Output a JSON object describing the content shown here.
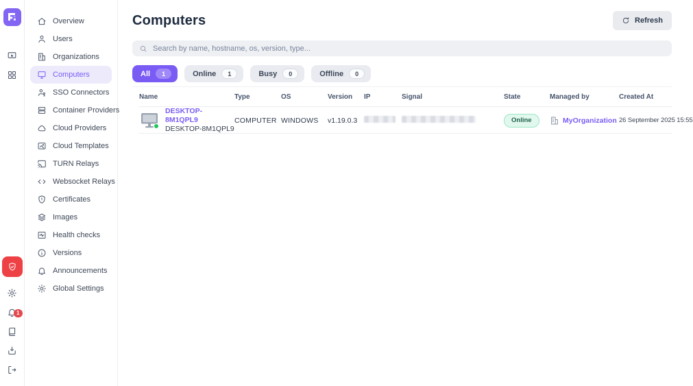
{
  "brand": {
    "logo_color": "#8265f3"
  },
  "rail": {
    "top_icons": [
      {
        "icon": "screen-share"
      },
      {
        "icon": "apps-grid"
      }
    ],
    "alert_button": {
      "icon": "shield-check",
      "color": "#ee4145"
    },
    "bottom_icons": [
      {
        "icon": "gear"
      },
      {
        "icon": "bell",
        "badge": "1"
      },
      {
        "icon": "book"
      },
      {
        "icon": "import-box"
      },
      {
        "icon": "logout"
      }
    ]
  },
  "sidebar": {
    "items": [
      {
        "label": "Overview",
        "icon": "home",
        "active": false
      },
      {
        "label": "Users",
        "icon": "user",
        "active": false
      },
      {
        "label": "Organizations",
        "icon": "building",
        "active": false
      },
      {
        "label": "Computers",
        "icon": "computer",
        "active": true
      },
      {
        "label": "SSO Connectors",
        "icon": "sso",
        "active": false
      },
      {
        "label": "Container Providers",
        "icon": "container",
        "active": false
      },
      {
        "label": "Cloud Providers",
        "icon": "cloud",
        "active": false
      },
      {
        "label": "Cloud Templates",
        "icon": "template",
        "active": false
      },
      {
        "label": "TURN Relays",
        "icon": "cast",
        "active": false
      },
      {
        "label": "Websocket Relays",
        "icon": "websocket",
        "active": false
      },
      {
        "label": "Certificates",
        "icon": "certificate",
        "active": false
      },
      {
        "label": "Images",
        "icon": "layers",
        "active": false
      },
      {
        "label": "Health checks",
        "icon": "health",
        "active": false
      },
      {
        "label": "Versions",
        "icon": "info",
        "active": false
      },
      {
        "label": "Announcements",
        "icon": "bell",
        "active": false
      },
      {
        "label": "Global Settings",
        "icon": "gear",
        "active": false
      }
    ]
  },
  "header": {
    "title": "Computers",
    "refresh_label": "Refresh"
  },
  "search": {
    "placeholder": "Search by name, hostname, os, version, type..."
  },
  "filters": [
    {
      "label": "All",
      "count": "1",
      "active": true
    },
    {
      "label": "Online",
      "count": "1",
      "active": false
    },
    {
      "label": "Busy",
      "count": "0",
      "active": false
    },
    {
      "label": "Offline",
      "count": "0",
      "active": false
    }
  ],
  "table": {
    "columns": [
      "Name",
      "Type",
      "OS",
      "Version",
      "IP",
      "Signal",
      "State",
      "Managed by",
      "Created At"
    ],
    "rows": [
      {
        "name_primary": "DESKTOP-8M1QPL9",
        "name_secondary": "DESKTOP-8M1QPL9",
        "type": "COMPUTER",
        "os": "WINDOWS",
        "version": "v1.19.0.3",
        "ip_redacted": true,
        "signal_redacted": true,
        "state": "Online",
        "managed_by": "MyOrganization",
        "created_at": "26 September 2025 15:55"
      }
    ]
  },
  "colors": {
    "accent": "#7a5cf5",
    "accent_bg": "#edeafc",
    "online_bg": "#e2f8ee",
    "online_border": "#96e7c4",
    "online_text": "#1d5f49",
    "alert": "#ee4145",
    "notification_badge": "#e5484d"
  }
}
